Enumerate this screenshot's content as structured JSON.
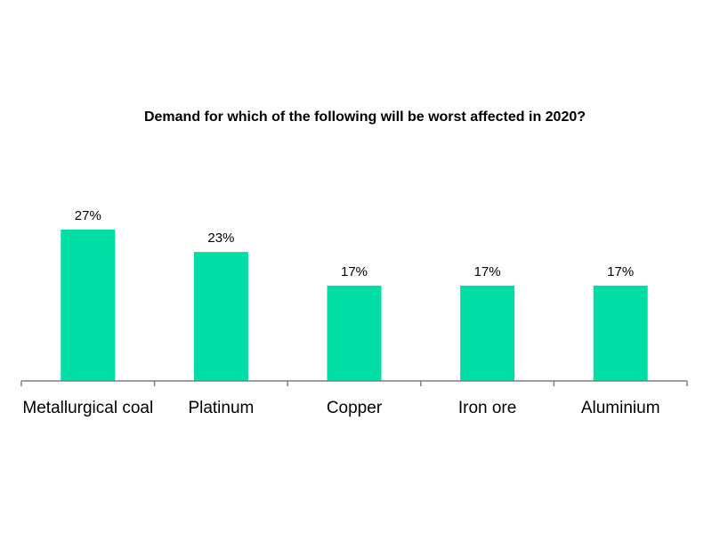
{
  "chart_data": {
    "type": "bar",
    "title": "Demand for which of the following will be worst affected in 2020?",
    "categories": [
      "Metallurgical coal",
      "Platinum",
      "Copper",
      "Iron ore",
      "Aluminium"
    ],
    "values": [
      27,
      23,
      17,
      17,
      17
    ],
    "data_labels": [
      "27%",
      "23%",
      "17%",
      "17%",
      "17%"
    ],
    "xlabel": "",
    "ylabel": "",
    "ylim": [
      0,
      30
    ],
    "grid": false,
    "legend": "none",
    "bar_color": "#00DDA5",
    "axis_color": "#7f7f7f"
  }
}
